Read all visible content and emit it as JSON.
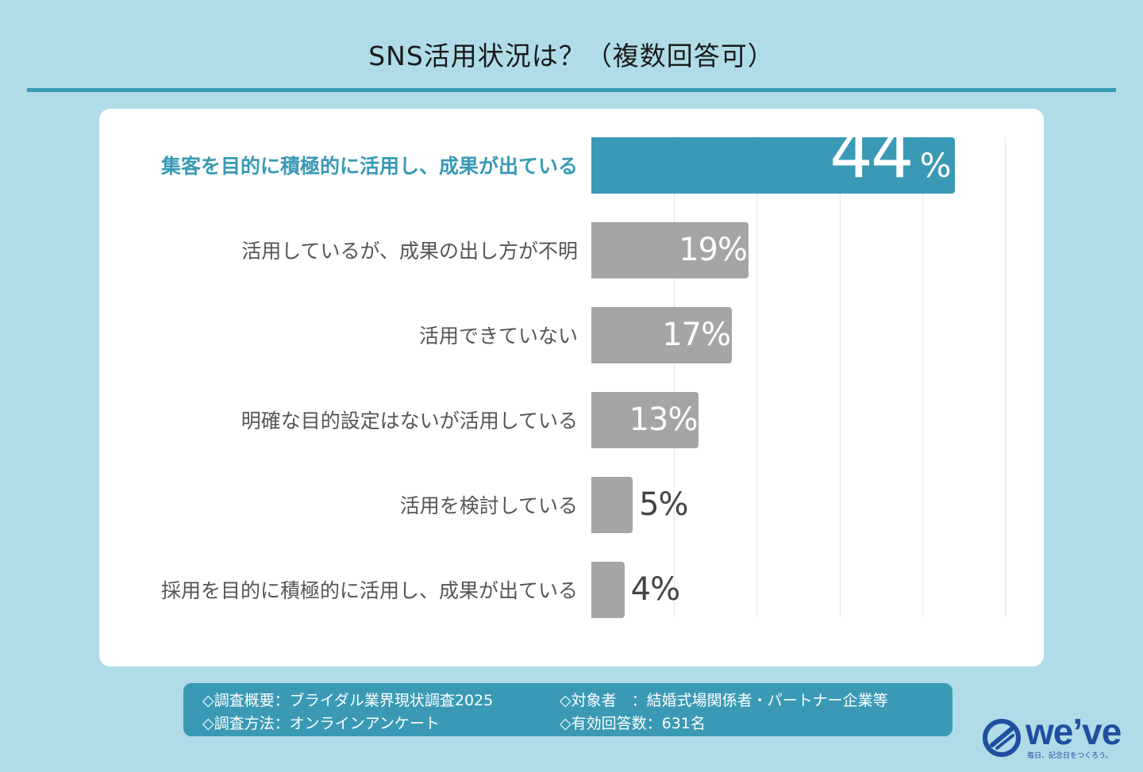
{
  "title": "SNS活用状況は？（複数回答可）",
  "chart_data": {
    "type": "bar",
    "orientation": "horizontal",
    "categories": [
      "集客を目的に積極的に活用し、成果が出ている",
      "活用しているが、成果の出し方が不明",
      "活用できていない",
      "明確な目的設定はないが活用している",
      "活用を検討している",
      "採用を目的に積極的に活用し、成果が出ている"
    ],
    "values": [
      44,
      19,
      17,
      13,
      5,
      4
    ],
    "value_labels": [
      "44",
      "19%",
      "17%",
      "13%",
      "5%",
      "4%"
    ],
    "percent_sign": "%",
    "xlim": [
      0,
      50
    ],
    "grid": true,
    "highlight_index": 0,
    "colors": {
      "highlight": "#3a9ab5",
      "default": "#a5a5a5"
    }
  },
  "footer": {
    "survey_overview": "◇調査概要：ブライダル業界現状調査2025",
    "target": "◇対象者　：結婚式場関係者・パートナー企業等",
    "method": "◇調査方法：オンラインアンケート",
    "responses": "◇有効回答数：631名"
  },
  "logo": {
    "wordmark": "we’ve",
    "tagline": "毎日、記念日をつくろう。"
  }
}
